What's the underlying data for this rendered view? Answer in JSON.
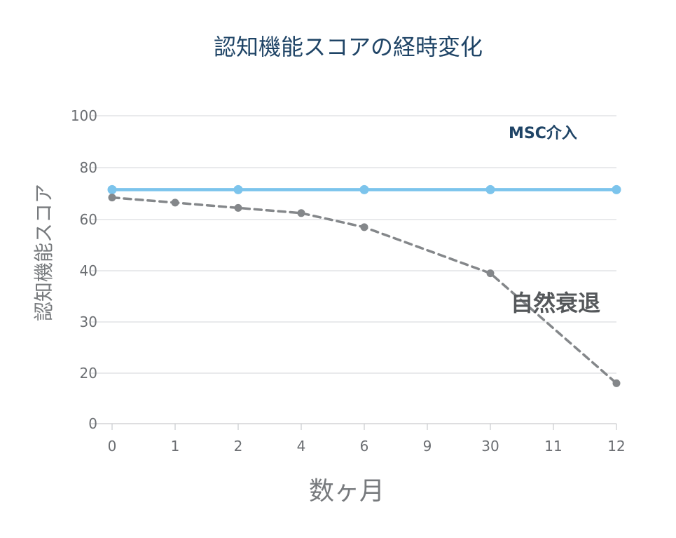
{
  "chart_data": {
    "type": "line",
    "title": "認知機能スコアの経時変化",
    "xlabel": "数ヶ月",
    "ylabel": "認知機能スコア",
    "categories": [
      "0",
      "1",
      "2",
      "4",
      "6",
      "9",
      "30",
      "11",
      "12"
    ],
    "y_ticks": [
      "100",
      "80",
      "60",
      "40",
      "30",
      "20",
      "0"
    ],
    "grid": true,
    "series": [
      {
        "name": "MSC介入",
        "color": "#7cc4ec",
        "line_style": "solid",
        "x": [
          "0",
          "2",
          "6",
          "30",
          "12"
        ],
        "values": [
          71.5,
          71.5,
          71.5,
          71.5,
          71.5
        ]
      },
      {
        "name": "自然衰退",
        "color": "#84878a",
        "line_style": "dashed",
        "x": [
          "0",
          "1",
          "2",
          "4",
          "6",
          "30",
          "12"
        ],
        "values": [
          68.5,
          66.5,
          64.5,
          62.5,
          57,
          39.5,
          16
        ]
      }
    ]
  }
}
